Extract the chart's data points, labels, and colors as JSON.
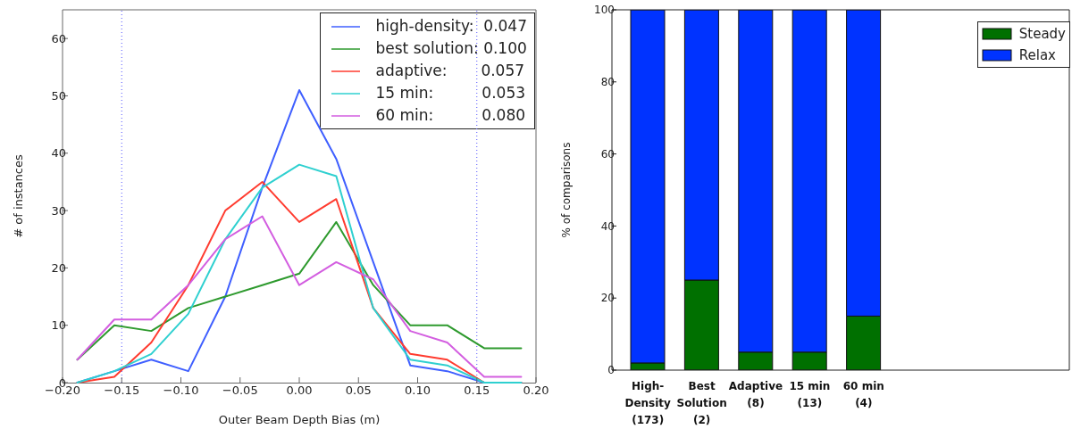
{
  "chart_data": [
    {
      "type": "line",
      "xlabel": "Outer Beam Depth Bias (m)",
      "ylabel": "# of instances",
      "x": [
        -0.1875,
        -0.15625,
        -0.125,
        -0.09375,
        -0.0625,
        -0.03125,
        0,
        0.03125,
        0.0625,
        0.09375,
        0.125,
        0.15625,
        0.1875
      ],
      "series": [
        {
          "name": "high-density:  0.047",
          "color": "#3f5fff",
          "values": [
            0,
            2,
            4,
            2,
            15,
            34,
            51,
            39,
            21,
            3,
            2,
            0,
            0
          ]
        },
        {
          "name": "best solution: 0.100",
          "color": "#2e9a2e",
          "values": [
            4,
            10,
            9,
            13,
            15,
            17,
            19,
            28,
            17,
            10,
            10,
            6,
            6
          ]
        },
        {
          "name": "adaptive:       0.057",
          "color": "#ff3b2f",
          "values": [
            0,
            1,
            7,
            17,
            30,
            35,
            28,
            32,
            13,
            5,
            4,
            0,
            0
          ]
        },
        {
          "name": "15 min:          0.053",
          "color": "#2fd0d0",
          "values": [
            0,
            2,
            5,
            12,
            25,
            34,
            38,
            36,
            13,
            4,
            3,
            0,
            0
          ]
        },
        {
          "name": "60 min:          0.080",
          "color": "#d35ee0",
          "values": [
            4,
            11,
            11,
            17,
            25,
            29,
            17,
            21,
            18,
            9,
            7,
            1,
            1
          ]
        }
      ],
      "xlim": [
        -0.2,
        0.2
      ],
      "xticks": [
        {
          "value": -0.2,
          "label": "−0.20"
        },
        {
          "value": -0.15,
          "label": "−0.15"
        },
        {
          "value": -0.1,
          "label": "−0.10"
        },
        {
          "value": -0.05,
          "label": "−0.05"
        },
        {
          "value": 0,
          "label": "0.00"
        },
        {
          "value": 0.05,
          "label": "0.05"
        },
        {
          "value": 0.1,
          "label": "0.10"
        },
        {
          "value": 0.15,
          "label": "0.15"
        },
        {
          "value": 0.2,
          "label": "0.20"
        }
      ],
      "ylim": [
        0,
        65
      ],
      "yticks": [
        0,
        10,
        20,
        30,
        40,
        50,
        60
      ],
      "ref_lines": [
        {
          "axis": "x",
          "value": -0.15,
          "color": "#5050ff",
          "line_style": "dotted"
        },
        {
          "axis": "x",
          "value": 0.15,
          "color": "#5050ff",
          "line_style": "dotted"
        }
      ],
      "legend": "top right",
      "grid": false,
      "marker": "none",
      "line_style": "solid"
    },
    {
      "type": "bar",
      "stacked": true,
      "ylabel": "% of comparisons",
      "categories": [
        "High-\nDensity\n(173)",
        "Best\nSolution\n(2)",
        "Adaptive\n\n(8)",
        "15 min\n\n(13)",
        "60 min\n\n(4)"
      ],
      "series": [
        {
          "name": "Steady",
          "color": "#007000",
          "values": [
            2,
            25,
            5,
            5,
            15
          ]
        },
        {
          "name": "Relax",
          "color": "#0033ff",
          "values": [
            98,
            75,
            95,
            95,
            85
          ]
        }
      ],
      "ylim": [
        0,
        100
      ],
      "yticks": [
        0,
        20,
        40,
        60,
        80,
        100
      ],
      "legend": "top right",
      "grid": false
    }
  ]
}
